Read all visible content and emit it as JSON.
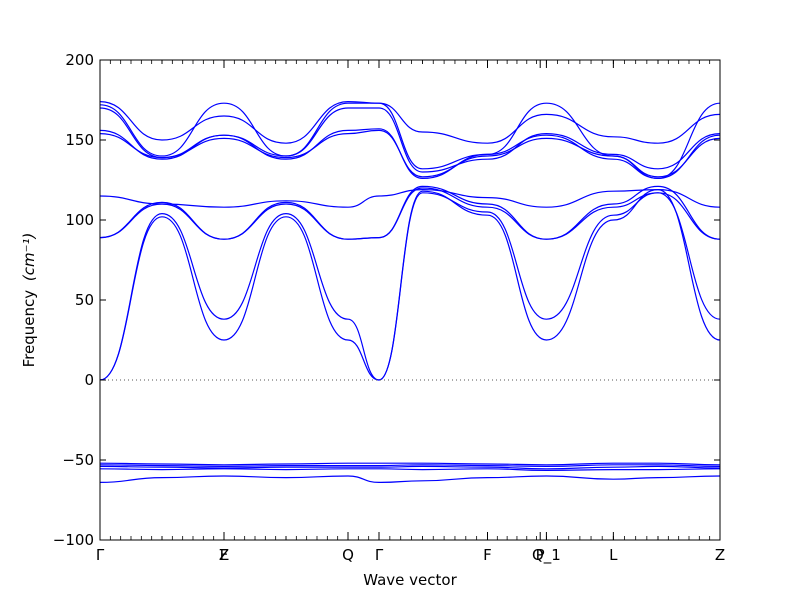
{
  "chart_data": {
    "type": "line",
    "title": "",
    "xlabel": "Wave vector",
    "ylabel": "Frequency",
    "ylabel_unit": "(cm⁻¹)",
    "ylim": [
      -100,
      200
    ],
    "yticks": [
      -100,
      -50,
      0,
      50,
      100,
      150,
      200
    ],
    "grid": false,
    "zero_line": true,
    "line_color": "#0000ff",
    "high_symmetry_points": [
      {
        "label": "Γ",
        "x": 0.0
      },
      {
        "label": "F",
        "x": 0.2
      },
      {
        "label": "Z",
        "x": 0.2
      },
      {
        "label": "Q",
        "x": 0.4
      },
      {
        "label": "Γ",
        "x": 0.45
      },
      {
        "label": "F",
        "x": 0.625
      },
      {
        "label": "P",
        "x": 0.71
      },
      {
        "label": "Q_1",
        "x": 0.72
      },
      {
        "label": "L",
        "x": 0.828
      },
      {
        "label": "Z",
        "x": 1.0
      }
    ],
    "band_grid_x": [
      0,
      0.1,
      0.2,
      0.3,
      0.4,
      0.45,
      0.52,
      0.625,
      0.72,
      0.828,
      0.9,
      1.0
    ],
    "series": [
      {
        "values": [
          0,
          102,
          25,
          102,
          25,
          0,
          118,
          103,
          25,
          100,
          119,
          25
        ]
      },
      {
        "values": [
          0,
          104,
          38,
          104,
          38,
          0,
          117,
          105,
          38,
          103,
          117,
          38
        ]
      },
      {
        "values": [
          89,
          110,
          88,
          110,
          88,
          89,
          120,
          108,
          88,
          108,
          117,
          88
        ]
      },
      {
        "values": [
          89,
          111,
          88,
          111,
          88,
          89,
          121,
          110,
          88,
          110,
          121,
          88
        ]
      },
      {
        "values": [
          115,
          110,
          108,
          112,
          108,
          115,
          119,
          114,
          108,
          118,
          119,
          108
        ]
      },
      {
        "values": [
          154,
          139,
          151,
          139,
          154,
          156,
          127,
          140,
          151,
          140,
          127,
          151
        ]
      },
      {
        "values": [
          156,
          138,
          153,
          138,
          156,
          157,
          126,
          141,
          153,
          138,
          126,
          153
        ]
      },
      {
        "values": [
          170,
          139,
          153,
          140,
          170,
          170,
          130,
          138,
          154,
          141,
          132,
          154
        ]
      },
      {
        "values": [
          172,
          140,
          173,
          140,
          173,
          173,
          132,
          141,
          173,
          140,
          126,
          173
        ]
      },
      {
        "values": [
          174,
          150,
          165,
          148,
          174,
          173,
          155,
          148,
          166,
          152,
          148,
          166
        ]
      },
      {
        "values": [
          -52,
          -52.5,
          -53,
          -52.5,
          -52,
          -52,
          -52,
          -52.5,
          -53,
          -52,
          -52,
          -53
        ]
      },
      {
        "values": [
          -53,
          -53.5,
          -54,
          -53.5,
          -53.5,
          -53.5,
          -53,
          -53.5,
          -54,
          -53,
          -53,
          -54
        ]
      },
      {
        "values": [
          -54,
          -54.5,
          -55,
          -54.5,
          -54.5,
          -54.5,
          -54,
          -54.5,
          -55.5,
          -54.5,
          -54,
          -55
        ]
      },
      {
        "values": [
          -55.5,
          -56,
          -55.5,
          -56,
          -55.5,
          -55.5,
          -56,
          -55.5,
          -56.5,
          -56,
          -56,
          -55.5
        ]
      },
      {
        "values": [
          -64,
          -61,
          -60,
          -61,
          -60,
          -64,
          -63,
          -61,
          -60,
          -62,
          -61,
          -60
        ]
      }
    ]
  }
}
